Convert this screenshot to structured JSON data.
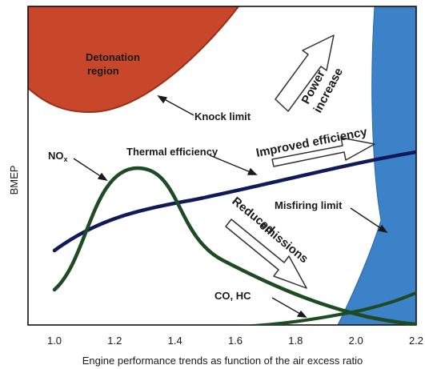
{
  "chart_data": {
    "type": "line",
    "xlabel": "Engine performance trends as function of the air excess ratio",
    "ylabel": "BMEP",
    "xlim": [
      0.9,
      2.2
    ],
    "x_ticks": [
      "1.0",
      "1.2",
      "1.4",
      "1.6",
      "1.8",
      "2.0",
      "2.2"
    ],
    "grid": false,
    "regions": {
      "detonation": "Detonation region",
      "knock": "Knock limit",
      "misfiring": "Misfiring limit"
    },
    "series": [
      {
        "name": "Thermal efficiency"
      },
      {
        "name": "NOx"
      },
      {
        "name": "CO, HC"
      }
    ],
    "annotations": {
      "power": [
        "Power",
        "increase"
      ],
      "efficiency": "Improved efficiency",
      "emissions": [
        "Reduced",
        "emissions"
      ]
    },
    "colors": {
      "detonation_fill": "#c8472a",
      "detonation_edge": "#9a2f1a",
      "misfire_fill": "#3c82c8",
      "thermal_line": "#101a5a",
      "emission_line": "#1e4a24",
      "arrow": "#333333"
    }
  }
}
